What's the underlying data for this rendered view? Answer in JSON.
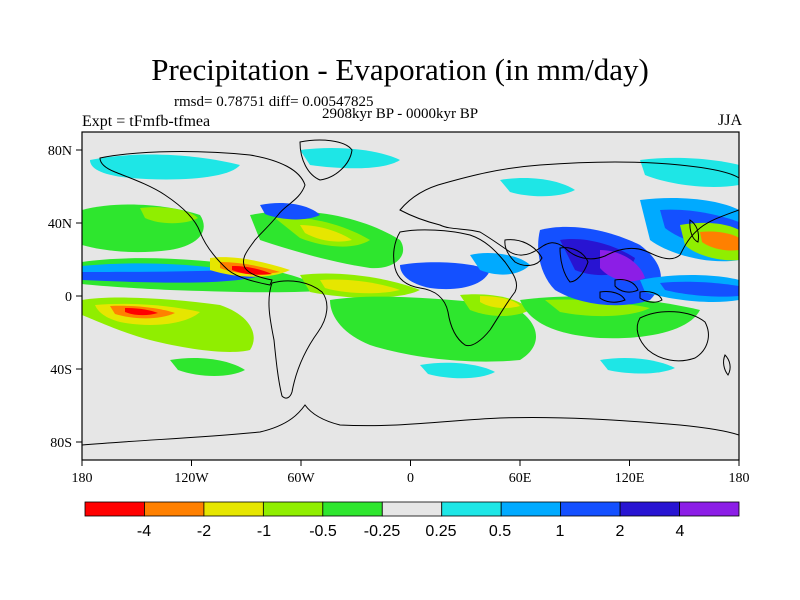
{
  "title": "Precipitation - Evaporation (in mm/day)",
  "stats_line": "rmsd= 0.78751 diff= 0.00547825",
  "period_line": "2908kyr BP - 0000kyr BP",
  "experiment_label": "Expt = tFmfb-tfmea",
  "season_label": "JJA",
  "axes": {
    "lat_ticks": [
      "80N",
      "40N",
      "0",
      "40S",
      "80S"
    ],
    "lat_values": [
      80,
      40,
      0,
      -40,
      -80
    ],
    "lon_ticks": [
      "180",
      "120W",
      "60W",
      "0",
      "60E",
      "120E",
      "180"
    ],
    "lon_values": [
      -180,
      -120,
      -60,
      0,
      60,
      120,
      180
    ]
  },
  "colorbar": {
    "labels": [
      "-4",
      "-2",
      "-1",
      "-0.5",
      "-0.25",
      "0.25",
      "0.5",
      "1",
      "2",
      "4"
    ],
    "colors": [
      "#ff0000",
      "#ff8000",
      "#e6e600",
      "#90ee00",
      "#2ee62e",
      "#e6e6e6",
      "#1ee6e6",
      "#00aaff",
      "#1450ff",
      "#2814d2",
      "#8c1ee6"
    ]
  },
  "field_colors": {
    "background": "#e6e6e6",
    "coast": "#000000"
  }
}
